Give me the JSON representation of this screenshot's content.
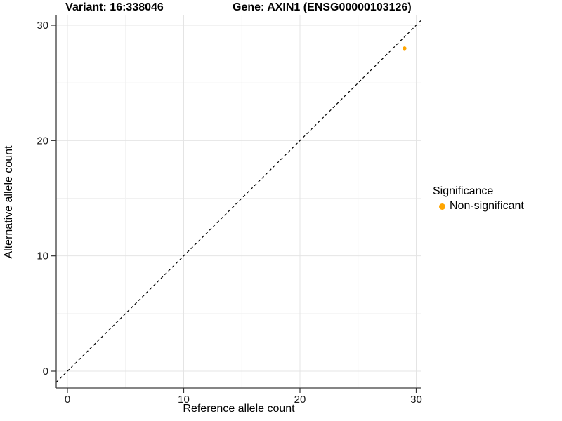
{
  "chart_data": {
    "type": "scatter",
    "title_left": "Variant: 16:338046",
    "title_right": "Gene: AXIN1 (ENSG00000103126)",
    "xlabel": "Reference allele count",
    "ylabel": "Alternative allele count",
    "xlim": [
      0,
      30
    ],
    "ylim": [
      0,
      30
    ],
    "x_ticks": [
      0,
      10,
      20,
      30
    ],
    "y_ticks": [
      0,
      10,
      20,
      30
    ],
    "x_minor_ticks": [
      5,
      15,
      25
    ],
    "y_minor_ticks": [
      5,
      15,
      25
    ],
    "grid": true,
    "legend_position": "right",
    "points": [
      {
        "x": 29,
        "y": 28,
        "series": "Non-significant",
        "color": "#FFA500"
      }
    ],
    "identity_line": {
      "slope": 1,
      "intercept": 0,
      "style": "dashed",
      "color": "#000000"
    },
    "legend": {
      "title": "Significance",
      "entries": [
        {
          "label": "Non-significant",
          "color": "#FFA500"
        }
      ]
    }
  },
  "colors": {
    "accent_orange": "#FFA500",
    "grid_major": "#e4e4e4",
    "grid_minor": "#f1f1f1",
    "axis_line": "#3c3c3c",
    "tick_mark": "#333333",
    "background": "#ffffff"
  }
}
